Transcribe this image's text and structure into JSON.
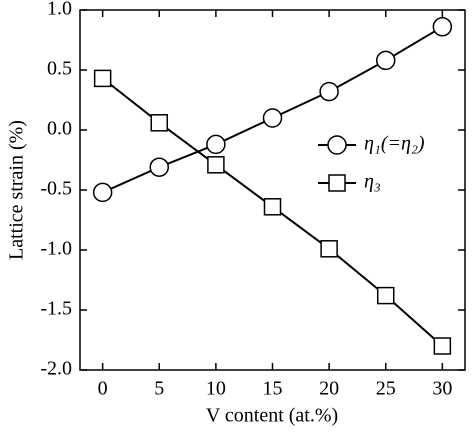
{
  "chart_data": {
    "type": "line",
    "x_label": "V content (at.%)",
    "y_label": "Lattice strain (%)",
    "x": [
      0,
      5,
      10,
      15,
      20,
      25,
      30
    ],
    "series": [
      {
        "name": "η₁(=η₂)",
        "color": "#000000",
        "marker": "circle",
        "values": [
          -0.52,
          -0.31,
          -0.12,
          0.1,
          0.32,
          0.58,
          0.86
        ]
      },
      {
        "name": "η₃",
        "color": "#000000",
        "marker": "square",
        "values": [
          0.43,
          0.06,
          -0.29,
          -0.64,
          -0.99,
          -1.38,
          -1.8
        ]
      }
    ],
    "xlim": [
      -2,
      32
    ],
    "xticks": [
      0,
      5,
      10,
      15,
      20,
      25,
      30
    ],
    "ylim": [
      -2,
      1
    ],
    "yticks": [
      {
        "value": 1,
        "label": "1.0"
      },
      0.5,
      {
        "value": 0,
        "label": "0.0"
      },
      -0.5,
      {
        "value": -1,
        "label": "-1.0"
      },
      -1.5,
      {
        "value": -2,
        "label": "-2.0"
      }
    ],
    "grid": false,
    "legend": "center right"
  }
}
